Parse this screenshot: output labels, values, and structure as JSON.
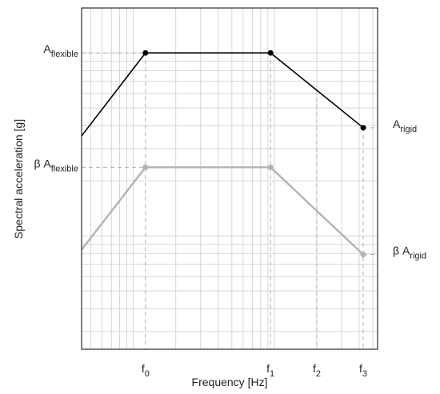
{
  "chart_data": {
    "type": "line",
    "xlabel": "Frequency [Hz]",
    "ylabel": "Spectral acceleration [g]",
    "xscale": "log",
    "yscale": "log",
    "grid": true,
    "xlim": [
      0.43,
      54
    ],
    "ylim": [
      0.024,
      1.76
    ],
    "y2lim": [
      0.024,
      1.76
    ],
    "xticks": [
      {
        "value": 1.22,
        "label": "f",
        "subscript": "0"
      },
      {
        "value": 9.4,
        "label": "f",
        "subscript": "1"
      },
      {
        "value": 20,
        "label": "f",
        "subscript": "2"
      },
      {
        "value": 42.7,
        "label": "f",
        "subscript": "3"
      }
    ],
    "yticks": [
      {
        "value": 1,
        "label": "A",
        "subscript": "flexible"
      },
      {
        "value": 0.237,
        "label": "β A",
        "subscript": "flexible"
      }
    ],
    "y2ticks": [
      {
        "value": 0.39,
        "label": "A",
        "subscript": "rigid"
      },
      {
        "value": 0.079,
        "label": "β A",
        "subscript": "rigid"
      }
    ],
    "series": [
      {
        "color": "#000000",
        "x": [
          0.43,
          1.22,
          9.4,
          42.7
        ],
        "values": [
          0.352,
          1,
          1,
          0.39
        ]
      },
      {
        "color": "#b3b3b3",
        "x": [
          0.43,
          1.22,
          9.4,
          42.7
        ],
        "values": [
          0.084,
          0.237,
          0.237,
          0.079
        ]
      }
    ]
  }
}
